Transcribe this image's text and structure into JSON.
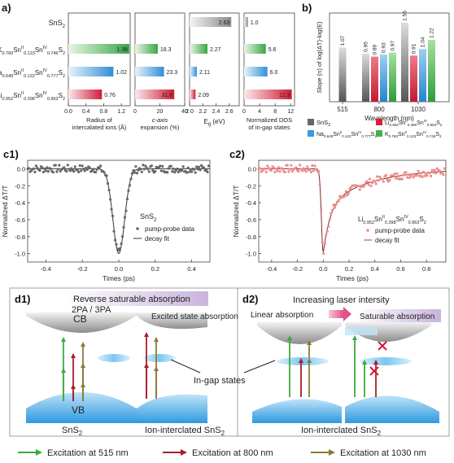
{
  "panel_labels": {
    "a": "a)",
    "b": "b)",
    "c1": "c1)",
    "c2": "c2)",
    "d1": "d1)",
    "d2": "d2)"
  },
  "panel_a": {
    "compounds": [
      {
        "main": "SnS",
        "sub": "2",
        "full": "SnS2"
      },
      {
        "main": "K",
        "sub": "0.760",
        "mid": "Sn",
        "sup": "II",
        "sub2": "0.123",
        "tail": "Sn",
        "sup2": "IV",
        "sub3": "0.746",
        "end": "S",
        "sub4": "2",
        "full": "K0.760SnII0.123SnIV0.746S2"
      },
      {
        "main": "Na",
        "sub": "0.649",
        "mid": "Sn",
        "sup": "II",
        "sub2": "0.122",
        "tail": "Sn",
        "sup2": "IV",
        "sub3": "0.777",
        "end": "S",
        "sub4": "2",
        "full": "Na0.649SnII0.122SnIV0.777S2"
      },
      {
        "main": "Li",
        "sub": "0.952",
        "mid": "Sn",
        "sup": "II",
        "sub2": "0.398",
        "tail": "Sn",
        "sup2": "IV",
        "sub3": "0.963",
        "end": "S",
        "sub4": "2",
        "full": "Li0.952SnII0.398SnIV0.963S2"
      }
    ],
    "sub_charts": [
      {
        "xlabel": [
          "Radius of",
          "intercalated ions (Å)"
        ],
        "ticks": [
          "0.0",
          "0.4",
          "0.8",
          "1.2"
        ],
        "xmin": 0,
        "xmax": 1.4,
        "values": [
          null,
          1.38,
          1.02,
          0.76
        ],
        "labels": [
          "",
          "1.38",
          "1.02",
          "0.76"
        ]
      },
      {
        "xlabel": [
          "c-axis",
          "expansion (%)"
        ],
        "ticks": [
          "0",
          "20",
          "40"
        ],
        "xmin": 0,
        "xmax": 40,
        "values": [
          null,
          18.3,
          23.3,
          31.6
        ],
        "labels": [
          "",
          "18.3",
          "23.3",
          "31.6"
        ]
      },
      {
        "xlabel": [
          "E",
          "g",
          "(eV)"
        ],
        "ticks": [
          "2.0",
          "2.2",
          "2.4",
          "2.6"
        ],
        "xmin": 2.0,
        "xmax": 2.75,
        "values": [
          2.63,
          2.27,
          2.11,
          2.09
        ],
        "labels": [
          "2.63",
          "2.27",
          "2.11",
          "2.09"
        ]
      },
      {
        "xlabel": [
          "Normalized DOS",
          "of in-gap states"
        ],
        "ticks": [
          "0",
          "4",
          "8",
          "12"
        ],
        "xmin": 0,
        "xmax": 13,
        "values": [
          1.0,
          5.6,
          6.0,
          12.3
        ],
        "labels": [
          "1.0",
          "5.6",
          "6.0",
          "12.3"
        ]
      }
    ]
  },
  "chart_data": [
    {
      "type": "bar",
      "title": "",
      "xlabel": "Wavelength (nm)",
      "ylabel": "Slope (n) of log(ΔT)-log(E)",
      "categories": [
        "515",
        "800",
        "1030"
      ],
      "series": [
        {
          "name": "SnS2",
          "values": [
            1.07,
            0.95,
            1.56
          ]
        },
        {
          "name": "Li0.952SnII0.398SnIV0.963S2",
          "values": [
            null,
            0.89,
            0.91
          ]
        },
        {
          "name": "Na0.649SnII0.122SnIV0.777S2",
          "values": [
            null,
            0.93,
            1.04
          ]
        },
        {
          "name": "K0.760SnII0.123SnIV0.746S2",
          "values": [
            null,
            0.97,
            1.22
          ]
        }
      ],
      "labels": {
        "515": [
          "1.07"
        ],
        "800": [
          "0.95",
          "0.89",
          "0.93",
          "0.97"
        ],
        "1030": [
          "1.56",
          "0.91",
          "1.04",
          "1.22"
        ]
      }
    }
  ],
  "panel_b": {
    "xlabel": "Wavelength (nm)",
    "ylabel": "Slope (n) of log(ΔT)-log(E)",
    "categories": [
      "515",
      "800",
      "1030"
    ],
    "colors": [
      "#666666",
      "#d3233a",
      "#3a9ad9",
      "#42b04a"
    ]
  },
  "legend_b": [
    {
      "label_main": "SnS",
      "label_sub": "2",
      "color": "#666666"
    },
    {
      "label_main": "Li",
      "label_sub": "0.952",
      "rest": "Sn",
      "sup": "II",
      "sub2": "0.398",
      "rest2": "Sn",
      "sup2": "IV",
      "sub3": "0.963",
      "end": "S",
      "sub4": "2",
      "color": "#d3233a"
    },
    {
      "label_main": "Na",
      "label_sub": "0.649",
      "rest": "Sn",
      "sup": "II",
      "sub2": "0.122",
      "rest2": "Sn",
      "sup2": "IV",
      "sub3": "0.777",
      "end": "S",
      "sub4": "2",
      "color": "#3a9ad9"
    },
    {
      "label_main": "K",
      "label_sub": "0.760",
      "rest": "Sn",
      "sup": "II",
      "sub2": "0.123",
      "rest2": "Sn",
      "sup2": "IV",
      "sub3": "0.746",
      "end": "S",
      "sub4": "2",
      "color": "#42b04a"
    }
  ],
  "panel_c1": {
    "ylabel": "Normalized ΔT/T",
    "xlabel": "Times (ps)",
    "xticks": [
      "-0.4",
      "-0.2",
      "0.0",
      "0.2",
      "0.4"
    ],
    "yticks": [
      "0.0",
      "-0.2",
      "-0.4",
      "-0.6",
      "-0.8",
      "-1.0"
    ],
    "sample": "SnS2",
    "legend": [
      "pump-probe data",
      "decay fit"
    ]
  },
  "panel_c2": {
    "ylabel": "Normalized ΔT/T",
    "xlabel": "Times (ps)",
    "xticks": [
      "-0.4",
      "-0.2",
      "0.0",
      "0.2",
      "0.4",
      "0.6",
      "0.8"
    ],
    "yticks": [
      "0.0",
      "-0.2",
      "-0.4",
      "-0.6",
      "-0.8",
      "-1.0"
    ],
    "sample": "Li0.952SnII0.398SnIV0.963S2",
    "legend": [
      "pump-probe data",
      "decay fit"
    ]
  },
  "panel_d1": {
    "banner": "Reverse saturable absorption",
    "left_title": "2PA / 3PA",
    "cb": "CB",
    "vb": "VB",
    "left_caption": "SnS2",
    "right_title": "Excited state absorption",
    "right_caption": "Ion-interclated SnS2",
    "ingap": "In-gap states"
  },
  "panel_d2": {
    "title": "Increasing laser intersity",
    "linear": "Linear absorption",
    "saturable": "Saturable absorption",
    "caption": "Ion-interclated SnS2"
  },
  "excitation_legend": [
    {
      "label": "Excitation at 515 nm",
      "color": "#3caa3c"
    },
    {
      "label": "Excitation at 800 nm",
      "color": "#a81e28"
    },
    {
      "label": "Excitation at 1030 nm",
      "color": "#8a7a3a"
    }
  ]
}
